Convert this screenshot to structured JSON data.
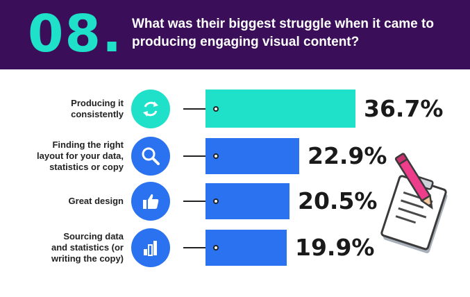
{
  "header": {
    "number": "08.",
    "question": "What was their biggest struggle when it came to producing engaging visual content?"
  },
  "colors": {
    "header_bg": "#3a0e58",
    "accent_teal": "#1fe0c8",
    "accent_blue": "#2a72f0",
    "pencil_pink": "#ee3d8a"
  },
  "chart_data": {
    "type": "bar",
    "orientation": "horizontal",
    "categories": [
      "Producing it consistently",
      "Finding the right layout for your data, statistics or copy",
      "Great design",
      "Sourcing data and statistics (or writing the copy)"
    ],
    "values": [
      36.7,
      22.9,
      20.5,
      19.9
    ],
    "value_labels": [
      "36.7%",
      "22.9%",
      "20.5%",
      "19.9%"
    ],
    "label_lines": [
      [
        "Producing it",
        "consistently"
      ],
      [
        "Finding the right",
        "layout for your data,",
        "statistics or copy"
      ],
      [
        "Great design"
      ],
      [
        "Sourcing data",
        "and statistics (or",
        "writing the copy)"
      ]
    ],
    "icons": [
      "refresh-icon",
      "magnifier-icon",
      "thumbs-up-icon",
      "bar-chart-icon"
    ],
    "bar_colors": [
      "#1fe0c8",
      "#2a72f0",
      "#2a72f0",
      "#2a72f0"
    ],
    "icon_colors": [
      "#1fe0c8",
      "#2a72f0",
      "#2a72f0",
      "#2a72f0"
    ],
    "unit": "%",
    "xlim": [
      0,
      36.7
    ],
    "grid": false,
    "legend": "none"
  }
}
